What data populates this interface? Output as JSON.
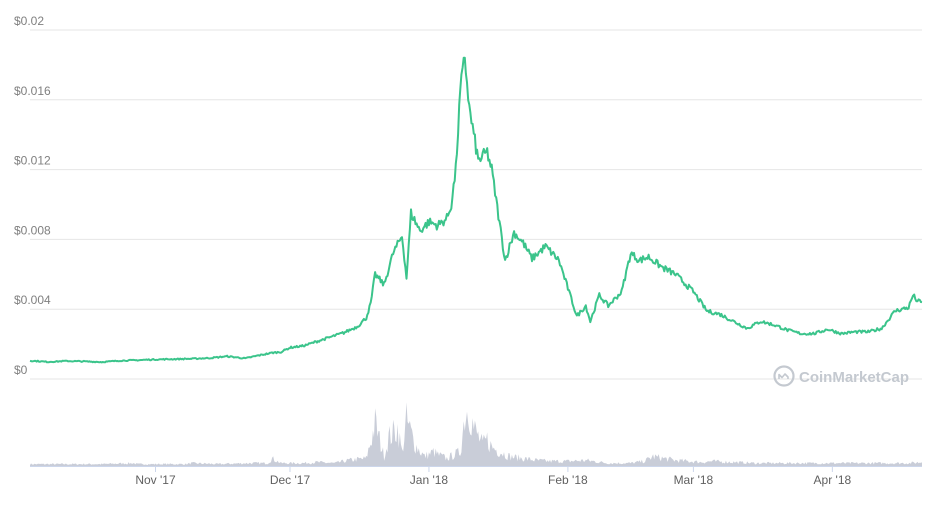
{
  "chart_data": {
    "type": "area",
    "title": "",
    "xlabel": "",
    "ylabel": "",
    "ylim": [
      0,
      0.02
    ],
    "y_ticks": [
      "$0",
      "$0.004",
      "$0.008",
      "$0.012",
      "$0.016",
      "$0.02"
    ],
    "y_tick_values": [
      0,
      0.004,
      0.008,
      0.012,
      0.016,
      0.02
    ],
    "x_range": [
      "2017-10-04",
      "2018-04-21"
    ],
    "x_ticks": [
      "Nov '17",
      "Dec '17",
      "Jan '18",
      "Feb '18",
      "Mar '18",
      "Apr '18"
    ],
    "x_tick_dates": [
      "2017-11-01",
      "2017-12-01",
      "2018-01-01",
      "2018-02-01",
      "2018-03-01",
      "2018-04-01"
    ],
    "grid": true,
    "watermark": "CoinMarketCap",
    "series": [
      {
        "type": "line",
        "color": "#3bc48b",
        "x": [
          "2017-10-04",
          "2017-10-08",
          "2017-10-12",
          "2017-10-16",
          "2017-10-20",
          "2017-10-24",
          "2017-10-28",
          "2017-11-01",
          "2017-11-05",
          "2017-11-09",
          "2017-11-13",
          "2017-11-17",
          "2017-11-21",
          "2017-11-24",
          "2017-11-27",
          "2017-11-29",
          "2017-12-01",
          "2017-12-04",
          "2017-12-07",
          "2017-12-10",
          "2017-12-13",
          "2017-12-16",
          "2017-12-18",
          "2017-12-19",
          "2017-12-20",
          "2017-12-22",
          "2017-12-24",
          "2017-12-26",
          "2017-12-27",
          "2017-12-28",
          "2017-12-30",
          "2018-01-01",
          "2018-01-03",
          "2018-01-05",
          "2018-01-06",
          "2018-01-07",
          "2018-01-08",
          "2018-01-09",
          "2018-01-10",
          "2018-01-12",
          "2018-01-14",
          "2018-01-15",
          "2018-01-17",
          "2018-01-18",
          "2018-01-20",
          "2018-01-22",
          "2018-01-24",
          "2018-01-27",
          "2018-01-30",
          "2018-02-03",
          "2018-02-05",
          "2018-02-06",
          "2018-02-08",
          "2018-02-10",
          "2018-02-13",
          "2018-02-15",
          "2018-02-17",
          "2018-02-19",
          "2018-02-22",
          "2018-02-25",
          "2018-03-01",
          "2018-03-04",
          "2018-03-07",
          "2018-03-10",
          "2018-03-13",
          "2018-03-16",
          "2018-03-19",
          "2018-03-22",
          "2018-03-25",
          "2018-03-28",
          "2018-03-31",
          "2018-04-03",
          "2018-04-06",
          "2018-04-09",
          "2018-04-12",
          "2018-04-15",
          "2018-04-18",
          "2018-04-19",
          "2018-04-20",
          "2018-04-21"
        ],
        "y": [
          0.00105,
          0.00098,
          0.00103,
          0.00101,
          0.00097,
          0.00105,
          0.00108,
          0.00112,
          0.00114,
          0.00116,
          0.0012,
          0.0013,
          0.00118,
          0.00135,
          0.0015,
          0.00155,
          0.0018,
          0.0019,
          0.00215,
          0.0024,
          0.00265,
          0.003,
          0.0035,
          0.0043,
          0.006,
          0.0054,
          0.0072,
          0.0082,
          0.0058,
          0.0095,
          0.0085,
          0.009,
          0.0088,
          0.0092,
          0.01,
          0.012,
          0.0165,
          0.0185,
          0.0155,
          0.0125,
          0.013,
          0.012,
          0.0085,
          0.0068,
          0.0084,
          0.0078,
          0.0069,
          0.0076,
          0.0068,
          0.0036,
          0.0042,
          0.0033,
          0.0048,
          0.0042,
          0.005,
          0.0072,
          0.0068,
          0.007,
          0.0064,
          0.006,
          0.005,
          0.0039,
          0.0037,
          0.0033,
          0.0029,
          0.0033,
          0.0031,
          0.0028,
          0.0026,
          0.0026,
          0.00285,
          0.0026,
          0.0027,
          0.0027,
          0.0029,
          0.0039,
          0.0041,
          0.0048,
          0.00445,
          0.0044
        ]
      },
      {
        "type": "volume",
        "color": "#c3c8d4",
        "x": [
          "2017-10-04",
          "2017-10-20",
          "2017-10-27",
          "2017-10-28",
          "2017-11-05",
          "2017-11-08",
          "2017-11-09",
          "2017-11-15",
          "2017-11-22",
          "2017-11-26",
          "2017-11-27",
          "2017-11-29",
          "2017-12-04",
          "2017-12-07",
          "2017-12-11",
          "2017-12-14",
          "2017-12-18",
          "2017-12-19",
          "2017-12-20",
          "2017-12-22",
          "2017-12-23",
          "2017-12-25",
          "2017-12-26",
          "2017-12-27",
          "2017-12-29",
          "2017-12-31",
          "2018-01-02",
          "2018-01-03",
          "2018-01-05",
          "2018-01-08",
          "2018-01-09",
          "2018-01-10",
          "2018-01-11",
          "2018-01-13",
          "2018-01-14",
          "2018-01-15",
          "2018-01-17",
          "2018-01-19",
          "2018-01-22",
          "2018-01-25",
          "2018-01-28",
          "2018-02-01",
          "2018-02-05",
          "2018-02-10",
          "2018-02-15",
          "2018-02-18",
          "2018-02-20",
          "2018-02-25",
          "2018-02-28",
          "2018-03-03",
          "2018-03-05",
          "2018-03-10",
          "2018-03-15",
          "2018-03-20",
          "2018-03-30",
          "2018-04-10",
          "2018-04-15",
          "2018-04-18",
          "2018-04-21"
        ],
        "y": [
          2,
          2,
          3,
          2,
          2,
          2,
          3,
          2,
          3,
          3,
          8,
          3,
          3,
          4,
          3,
          6,
          8,
          25,
          45,
          10,
          30,
          40,
          15,
          48,
          22,
          10,
          15,
          12,
          8,
          15,
          55,
          62,
          40,
          22,
          28,
          20,
          15,
          10,
          8,
          6,
          5,
          5,
          6,
          3,
          3,
          5,
          10,
          6,
          5,
          4,
          5,
          4,
          3,
          3,
          3,
          3,
          3,
          3,
          4
        ]
      }
    ]
  }
}
